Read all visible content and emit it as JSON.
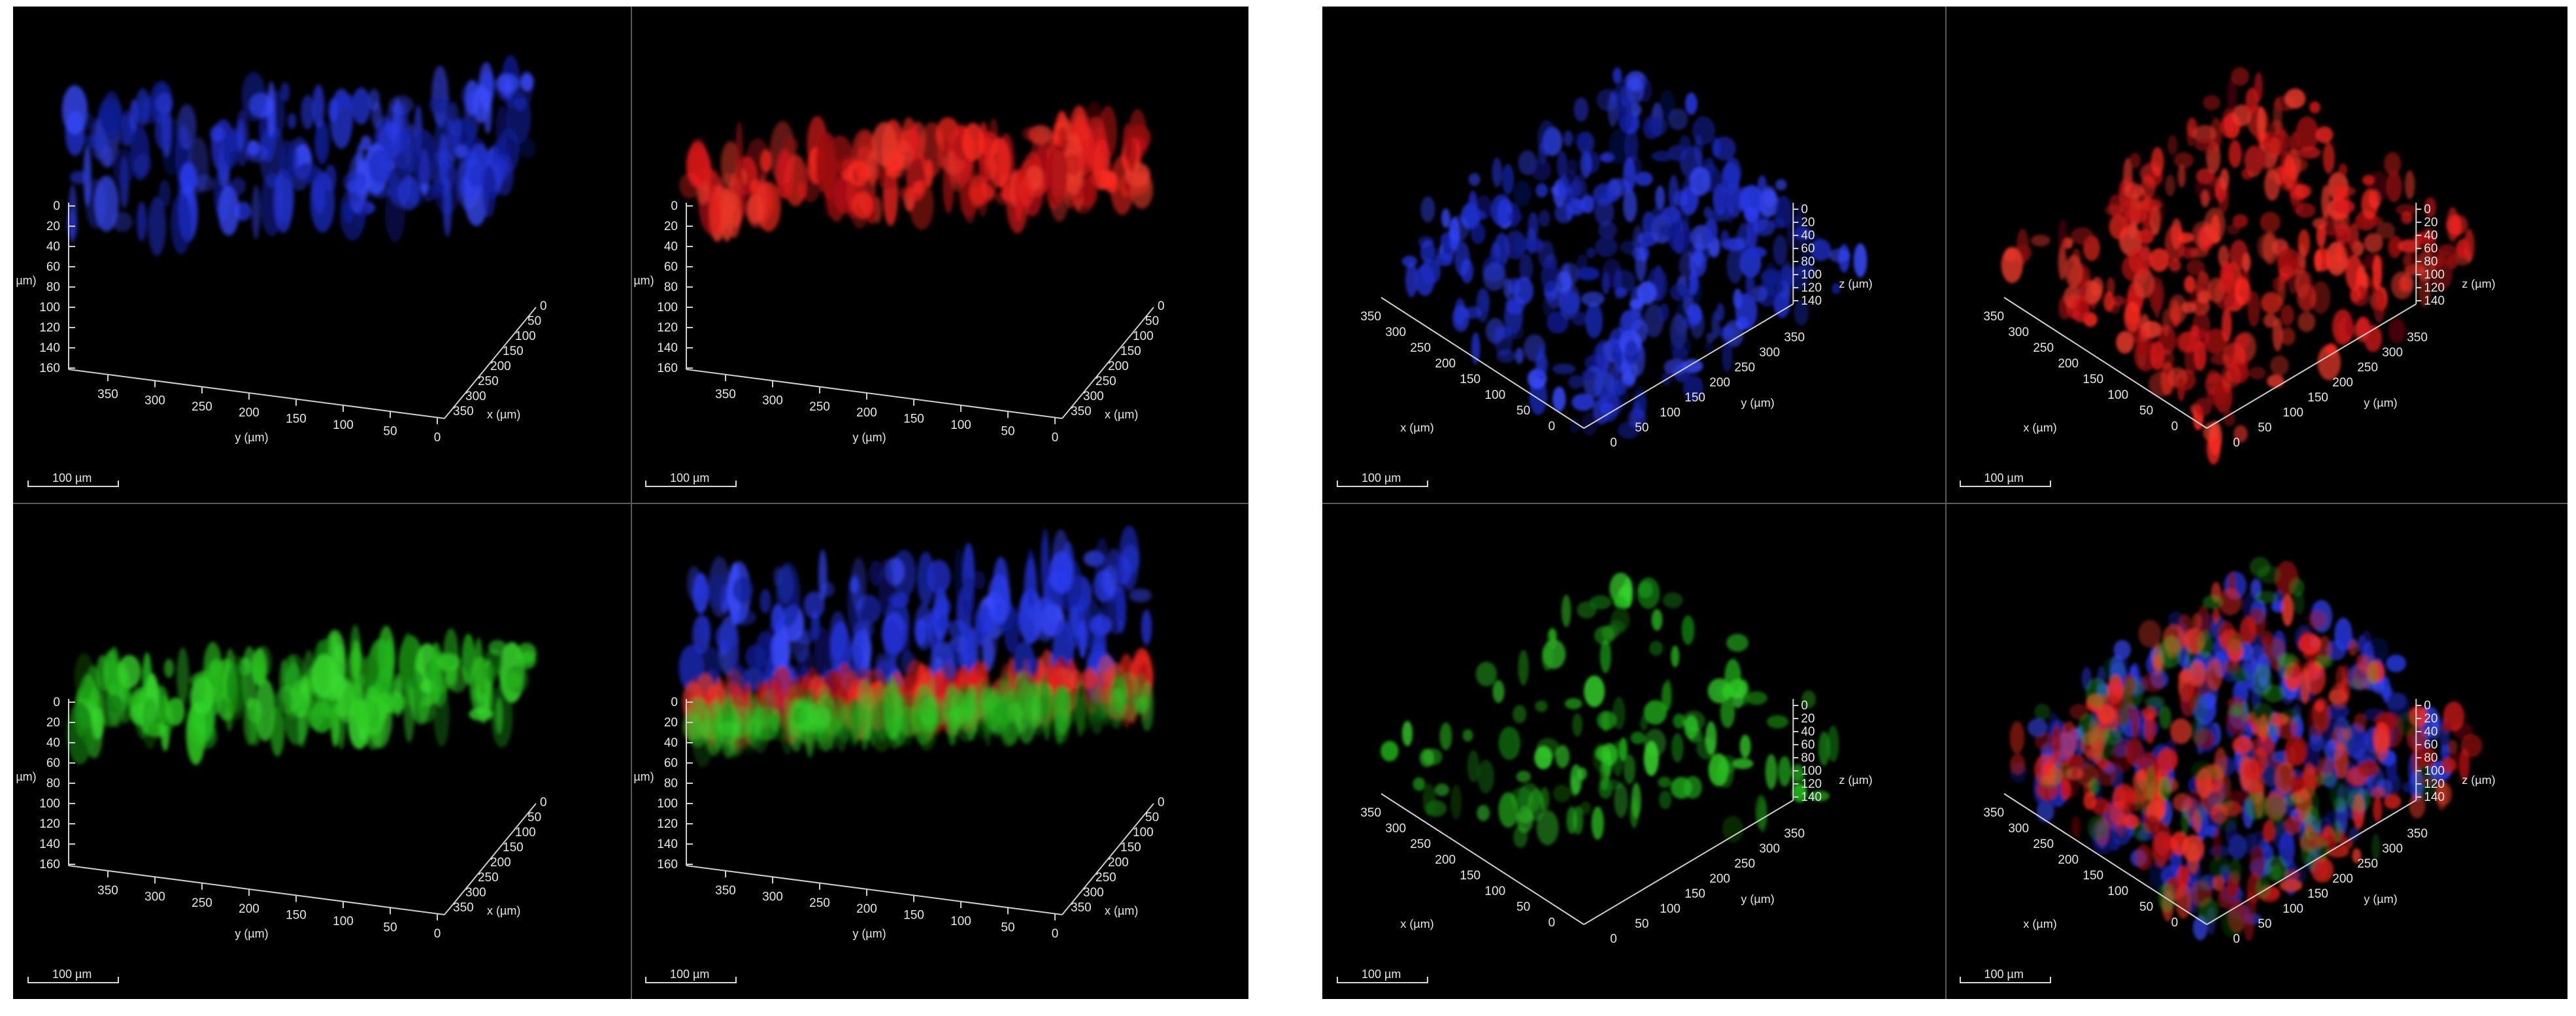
{
  "scale_bar": "100 µm",
  "side_view": {
    "y_axis_title": "y (µm)",
    "x_axis_title": "x (µm)",
    "z_axis_title": "µm)",
    "y_ticks": [
      "350",
      "300",
      "250",
      "200",
      "150",
      "100",
      "50",
      "0"
    ],
    "x_ticks": [
      "0",
      "50",
      "100",
      "150",
      "200",
      "250",
      "300",
      "350"
    ],
    "z_ticks": [
      "0",
      "20",
      "40",
      "60",
      "80",
      "100",
      "120",
      "140",
      "160"
    ]
  },
  "top_view": {
    "x_axis_title": "x (µm)",
    "y_axis_title": "y (µm)",
    "z_axis_title": "z (µm)",
    "x_ticks": [
      "350",
      "300",
      "250",
      "200",
      "150",
      "100",
      "50",
      "0"
    ],
    "y_ticks": [
      "350",
      "300",
      "250",
      "200",
      "150",
      "100",
      "50",
      "0"
    ],
    "z_ticks": [
      "0",
      "20",
      "40",
      "60",
      "80",
      "100",
      "120",
      "140"
    ]
  },
  "channel_colors": {
    "blue": "#1e2ec8",
    "red": "#d8181a",
    "green": "#22b51c"
  },
  "panels": [
    {
      "id": "left-blue",
      "view": "side",
      "channel": "blue"
    },
    {
      "id": "left-red",
      "view": "side",
      "channel": "red"
    },
    {
      "id": "left-green",
      "view": "side",
      "channel": "green"
    },
    {
      "id": "left-merge",
      "view": "side",
      "channel": "merge"
    },
    {
      "id": "right-blue",
      "view": "top",
      "channel": "blue"
    },
    {
      "id": "right-red",
      "view": "top",
      "channel": "red"
    },
    {
      "id": "right-green",
      "view": "top",
      "channel": "green"
    },
    {
      "id": "right-merge",
      "view": "top",
      "channel": "merge"
    }
  ]
}
